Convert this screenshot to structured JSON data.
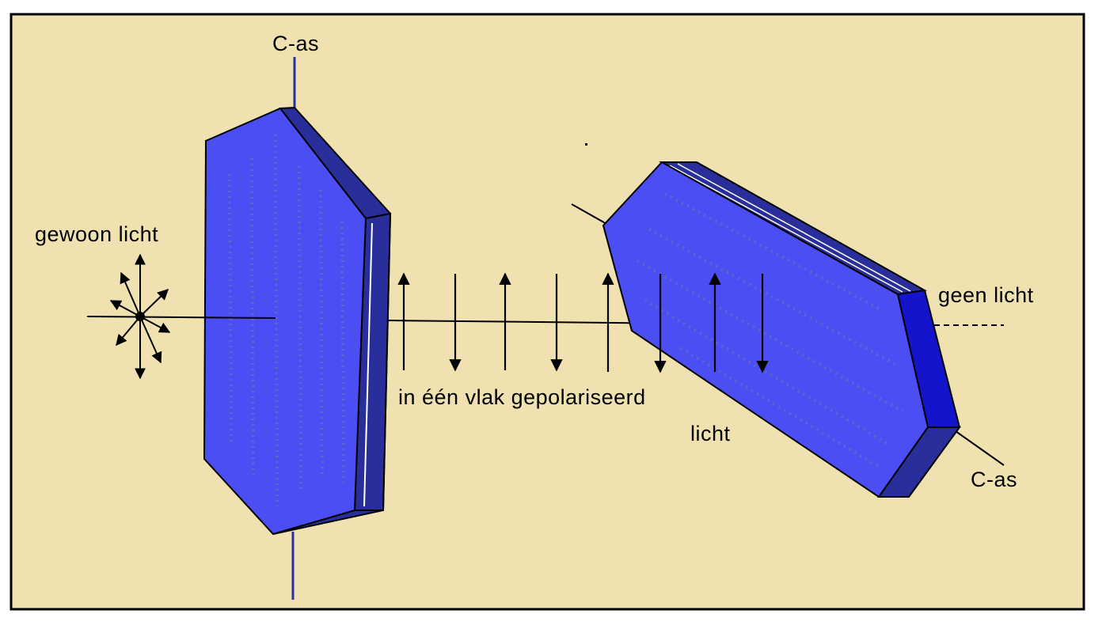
{
  "labels": {
    "c_axis_left": "C-as",
    "ordinary_light": "gewoon licht",
    "polarized_light_line1": "in één vlak gepolariseerd",
    "polarized_light_line2": "licht",
    "no_light": "geen licht",
    "c_axis_right": "C-as"
  },
  "colors": {
    "background": "#f0e2b0",
    "frame": "#000000",
    "crystal_face": "#4b4ef2",
    "crystal_side": "#2a2e9a",
    "crystal_edge": "#1414cc",
    "c_axis_line": "#2a2ea0",
    "ray": "#000000"
  },
  "icons": [
    "crystal-polarizer",
    "crystal-analyzer",
    "light-vibration-star",
    "vibration-arrows"
  ]
}
